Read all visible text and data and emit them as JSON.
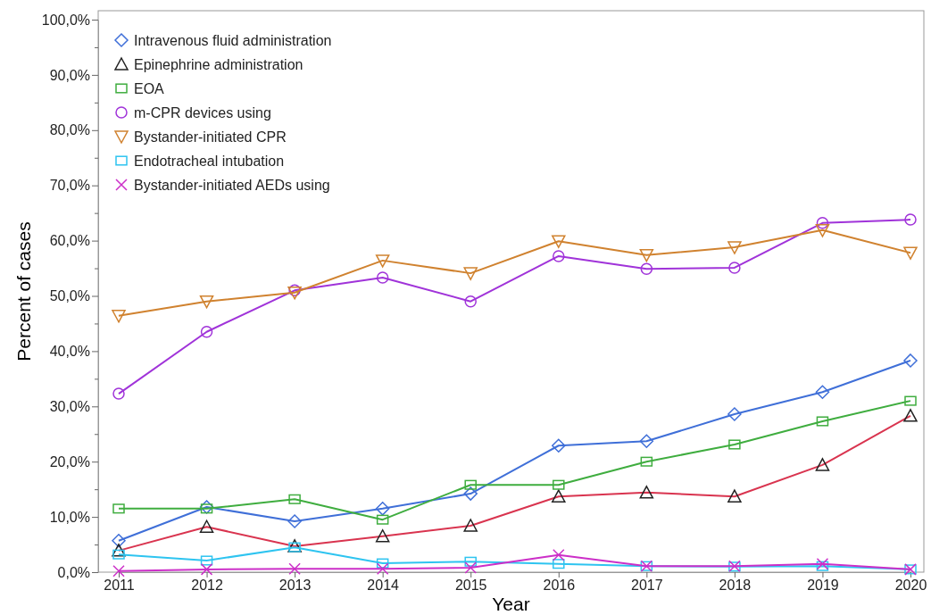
{
  "chart_data": {
    "type": "line",
    "xlabel": "Year",
    "ylabel": "Percent of cases",
    "categories": [
      "2011",
      "2012",
      "2013",
      "2014",
      "2015",
      "2016",
      "2017",
      "2018",
      "2019",
      "2020"
    ],
    "ylim": [
      0,
      100
    ],
    "yticks": [
      {
        "value": 0,
        "label": "0,0%"
      },
      {
        "value": 5,
        "label": null
      },
      {
        "value": 10,
        "label": "10,0%"
      },
      {
        "value": 15,
        "label": null
      },
      {
        "value": 20,
        "label": "20,0%"
      },
      {
        "value": 25,
        "label": null
      },
      {
        "value": 30,
        "label": "30,0%"
      },
      {
        "value": 35,
        "label": null
      },
      {
        "value": 40,
        "label": "40,0%"
      },
      {
        "value": 45,
        "label": null
      },
      {
        "value": 50,
        "label": "50,0%"
      },
      {
        "value": 55,
        "label": null
      },
      {
        "value": 60,
        "label": "60,0%"
      },
      {
        "value": 65,
        "label": null
      },
      {
        "value": 70,
        "label": "70,0%"
      },
      {
        "value": 75,
        "label": null
      },
      {
        "value": 80,
        "label": "80,0%"
      },
      {
        "value": 85,
        "label": null
      },
      {
        "value": 90,
        "label": "90,0%"
      },
      {
        "value": 95,
        "label": null
      },
      {
        "value": 100,
        "label": "100,0%"
      }
    ],
    "grid": false,
    "legend": "top left",
    "line_style": "solid",
    "series": [
      {
        "name": "Intravenous fluid administration",
        "color": "#3f6fd8",
        "marker": "diamond",
        "values": [
          5.7,
          11.8,
          9.2,
          11.5,
          14.2,
          22.9,
          23.7,
          28.6,
          32.6,
          38.3
        ]
      },
      {
        "name": "Epinephrine administration",
        "color": "#d9344f",
        "colors": [
          "#222222",
          "#222222",
          "#222222",
          "#222222",
          "#222222",
          "#222222",
          "#222222",
          "#222222",
          "#222222",
          "#222222"
        ],
        "marker": "triangle",
        "values": [
          3.9,
          8.2,
          4.7,
          6.5,
          8.4,
          13.7,
          14.4,
          13.7,
          19.4,
          28.3
        ]
      },
      {
        "name": "EOA",
        "color": "#3fad3f",
        "marker": "square",
        "values": [
          11.5,
          11.5,
          13.2,
          9.5,
          15.8,
          15.8,
          20.0,
          23.1,
          27.3,
          31.0
        ]
      },
      {
        "name": "m-CPR devices using",
        "color": "#a033d9",
        "marker": "circle",
        "values": [
          32.3,
          43.5,
          51.0,
          53.3,
          49.0,
          57.2,
          54.9,
          55.1,
          63.2,
          63.8
        ]
      },
      {
        "name": "Bystander-initiated CPR",
        "color": "#d0822f",
        "marker": "triangle-down",
        "values": [
          46.4,
          49.0,
          50.6,
          56.4,
          54.1,
          59.9,
          57.4,
          58.8,
          61.9,
          57.8
        ]
      },
      {
        "name": "Endotracheal intubation",
        "color": "#2ec4f0",
        "marker": "square",
        "values": [
          3.2,
          2.1,
          4.5,
          1.6,
          1.9,
          1.5,
          1.1,
          1.0,
          1.1,
          0.5
        ]
      },
      {
        "name": "Bystander-initiated AEDs using",
        "color": "#cc2fc8",
        "marker": "cross",
        "values": [
          0.2,
          0.5,
          0.6,
          0.6,
          0.8,
          3.1,
          1.1,
          1.1,
          1.5,
          0.5
        ]
      }
    ]
  }
}
